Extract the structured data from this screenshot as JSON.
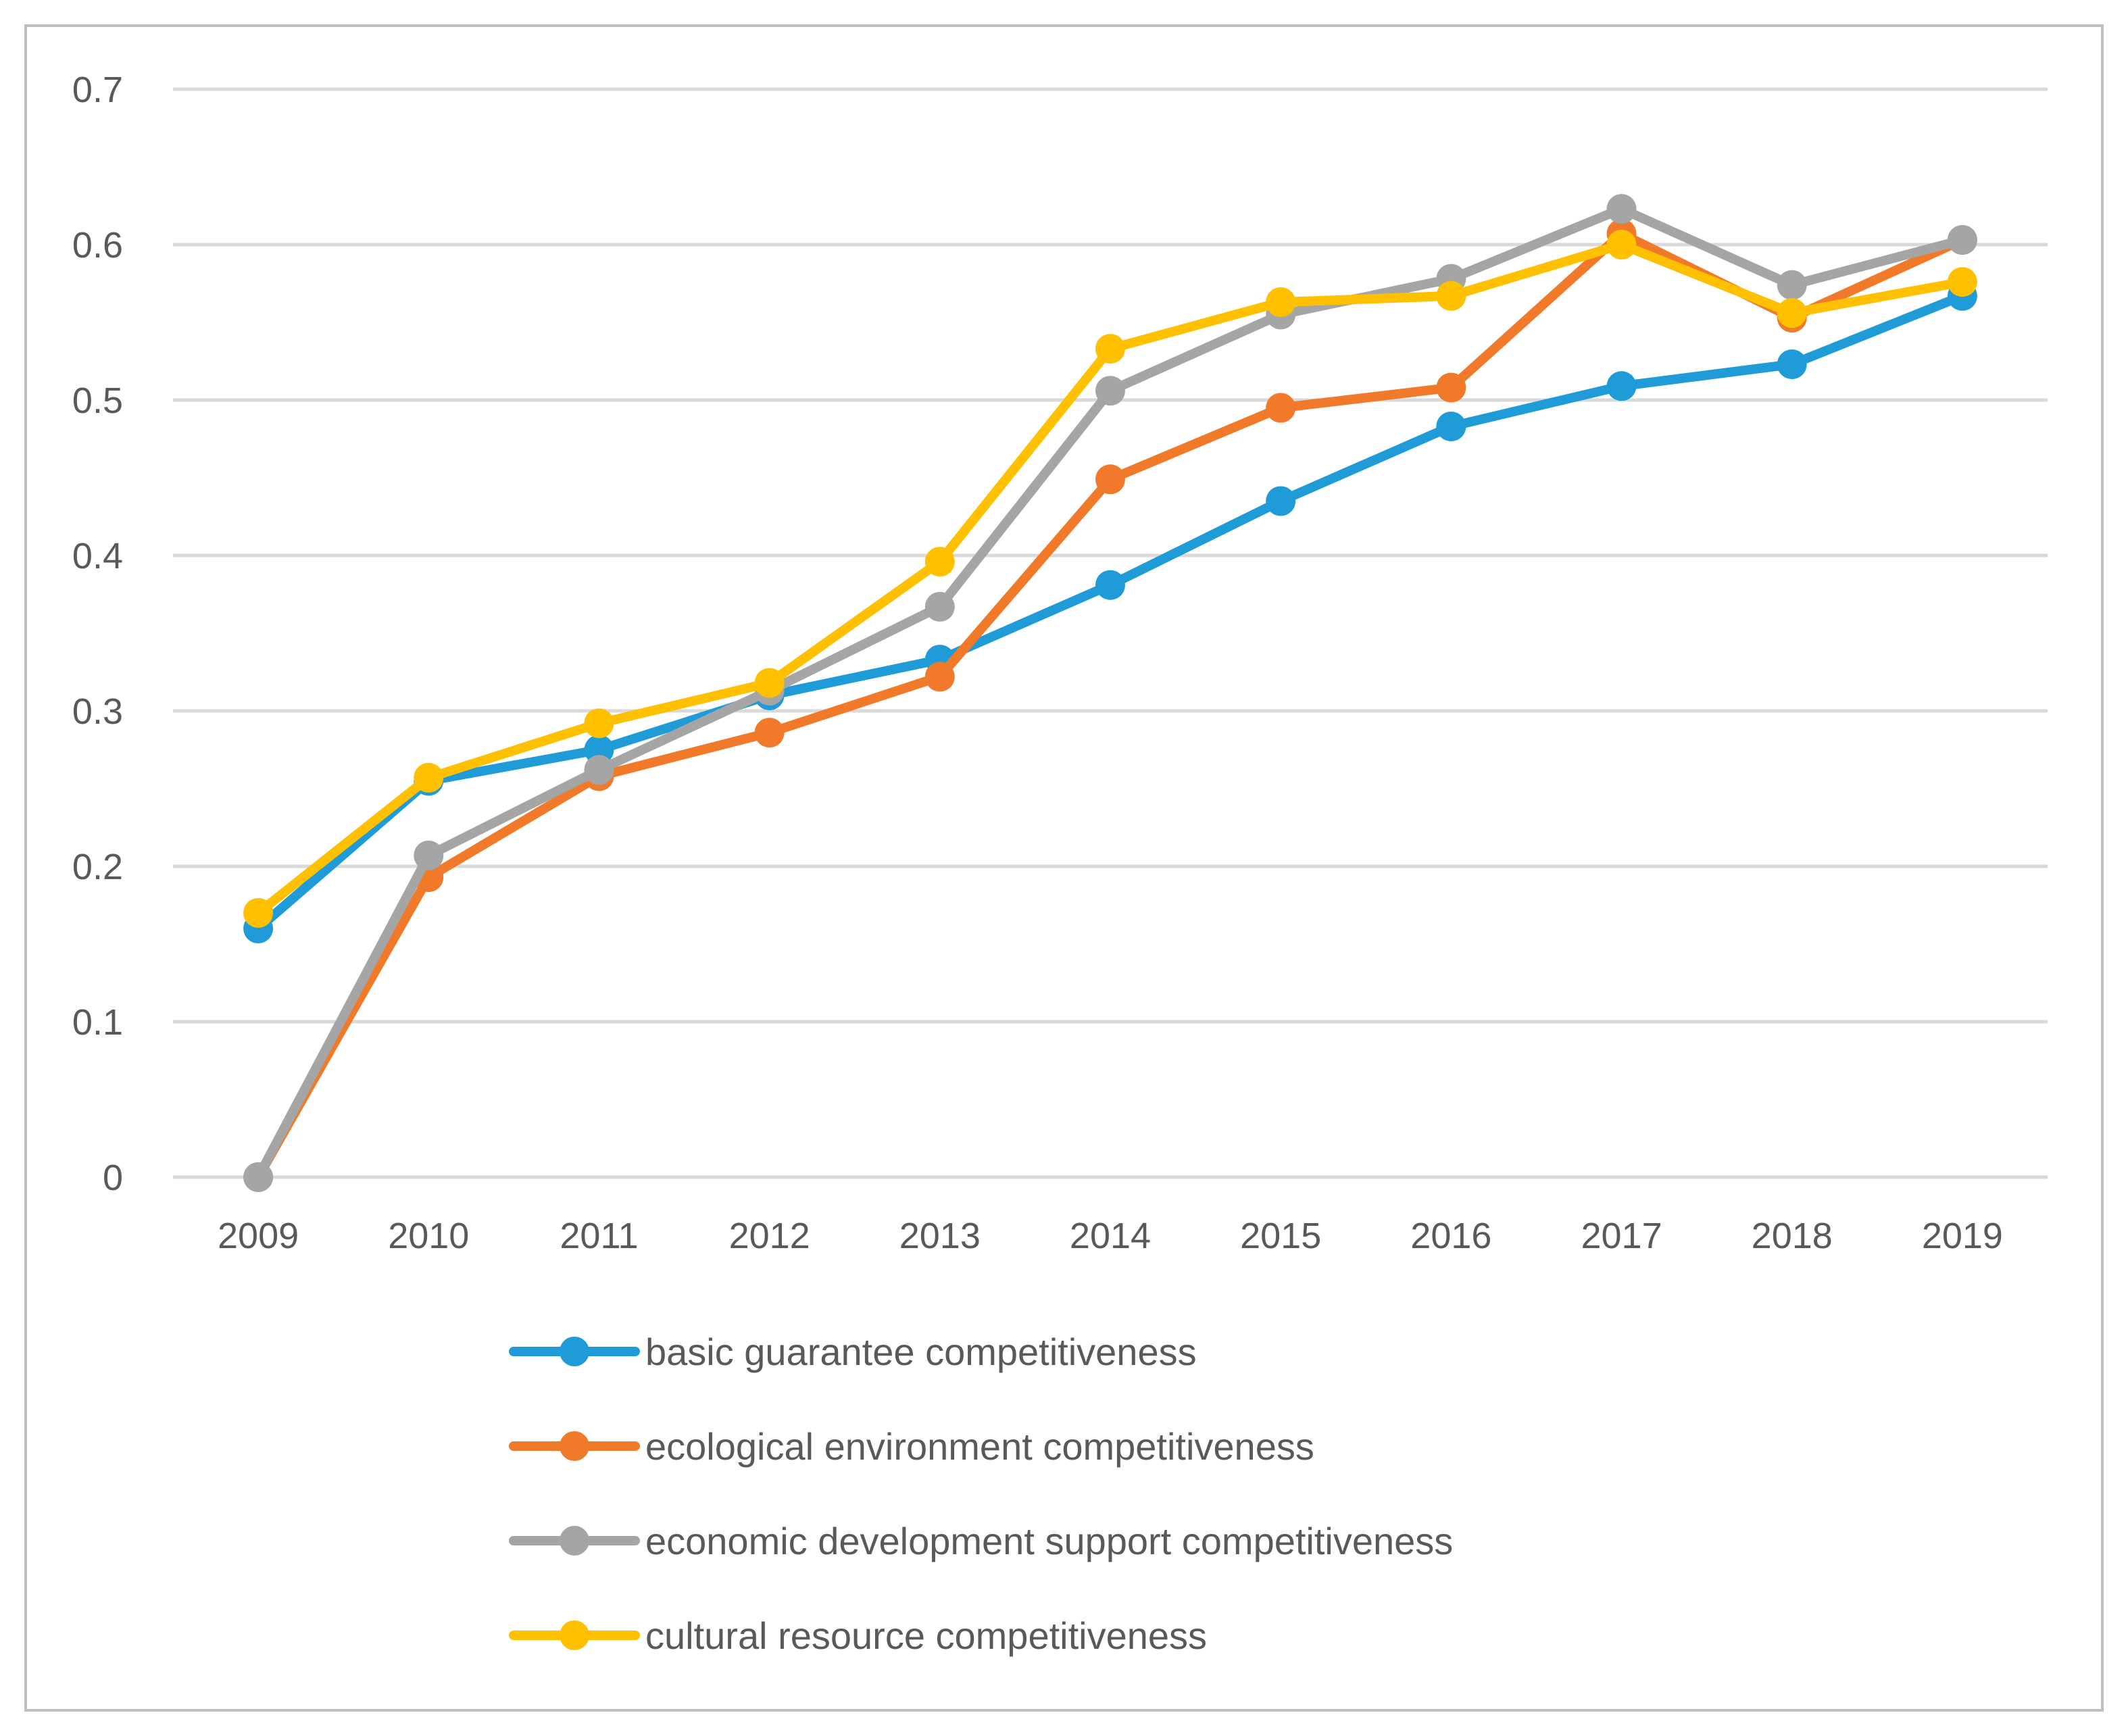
{
  "chart_data": {
    "type": "line",
    "title": "",
    "xlabel": "",
    "ylabel": "",
    "ylim": [
      0,
      0.7
    ],
    "yticks": [
      0,
      0.1,
      0.2,
      0.3,
      0.4,
      0.5,
      0.6,
      0.7
    ],
    "ytick_labels": [
      "0",
      "0.1",
      "0.2",
      "0.3",
      "0.4",
      "0.5",
      "0.6",
      "0.7"
    ],
    "grid": true,
    "legend_position": "bottom",
    "categories": [
      "2009",
      "2010",
      "2011",
      "2012",
      "2013",
      "2014",
      "2015",
      "2016",
      "2017",
      "2018",
      "2019"
    ],
    "series": [
      {
        "name": "basic guarantee competitiveness",
        "color": "#1f9bd7",
        "values": [
          0.16,
          0.255,
          0.275,
          0.31,
          0.333,
          0.381,
          0.435,
          0.483,
          0.509,
          0.523,
          0.567
        ]
      },
      {
        "name": "ecological environment competitiveness",
        "color": "#f07a2a",
        "values": [
          0.0,
          0.193,
          0.258,
          0.286,
          0.322,
          0.449,
          0.495,
          0.508,
          0.607,
          0.553,
          0.603
        ]
      },
      {
        "name": "economic development support competitiveness",
        "color": "#a5a5a5",
        "values": [
          0.0,
          0.207,
          0.262,
          0.313,
          0.367,
          0.506,
          0.555,
          0.578,
          0.623,
          0.574,
          0.603
        ]
      },
      {
        "name": "cultural resource competitiveness",
        "color": "#ffc000",
        "values": [
          0.17,
          0.257,
          0.292,
          0.318,
          0.396,
          0.533,
          0.563,
          0.567,
          0.6,
          0.556,
          0.576
        ]
      }
    ]
  },
  "style": {
    "grid_color": "#d9d9d9",
    "axis_line_color": "#d9d9d9",
    "frame_color": "#bfbfbf",
    "text_color": "#595959"
  }
}
